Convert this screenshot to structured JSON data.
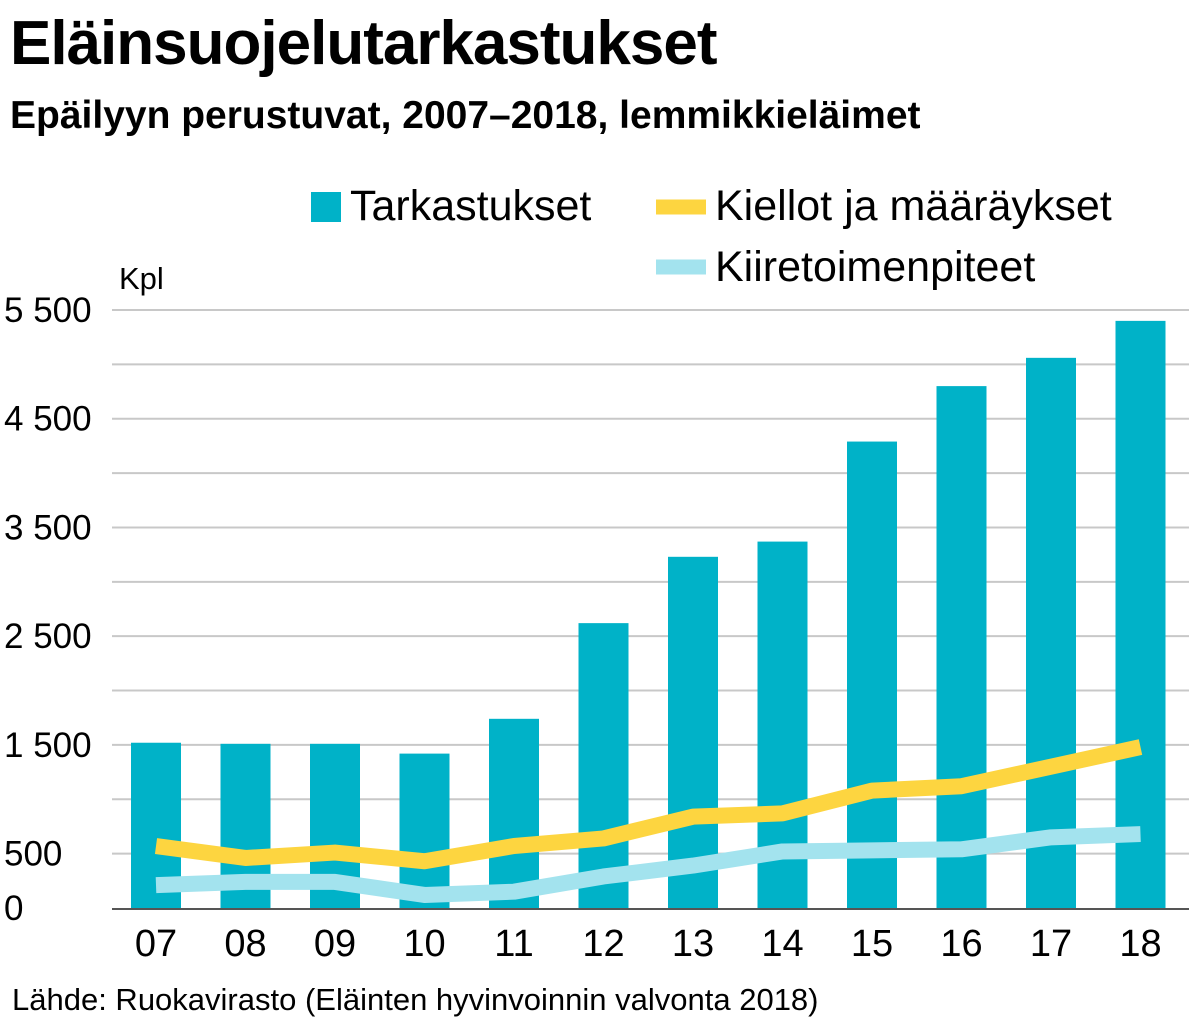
{
  "title": "Eläinsuojelutarkastukset",
  "subtitle": "Epäilyyn perustuvat, 2007–2018, lemmikkieläimet",
  "source": "Lähde: Ruokavirasto (Eläinten hyvinvoinnin valvonta 2018)",
  "colors": {
    "bars": "#00b2c8",
    "line_kiellot": "#fdd540",
    "line_kiire": "#a3e3ee",
    "grid": "#c8c8c8",
    "axis": "#555555"
  },
  "chart_data": {
    "type": "bar",
    "title": "Eläinsuojelutarkastukset",
    "subtitle": "Epäilyyn perustuvat, 2007–2018, lemmikkieläimet",
    "ylabel": "Kpl",
    "xlabel": "",
    "categories": [
      "07",
      "08",
      "09",
      "10",
      "11",
      "12",
      "13",
      "14",
      "15",
      "16",
      "17",
      "18"
    ],
    "ylim": [
      0,
      5500
    ],
    "ytick_labels": [
      {
        "value": 0,
        "label": "0"
      },
      {
        "value": 500,
        "label": "500"
      },
      {
        "value": 1500,
        "label": "1 500"
      },
      {
        "value": 2500,
        "label": "2 500"
      },
      {
        "value": 3500,
        "label": "3 500"
      },
      {
        "value": 4500,
        "label": "4 500"
      },
      {
        "value": 5500,
        "label": "5 500"
      }
    ],
    "grid_values": [
      500,
      1000,
      1500,
      2000,
      2500,
      3000,
      3500,
      4000,
      4500,
      5000,
      5500
    ],
    "legend_position": "top-right",
    "series": [
      {
        "name": "Tarkastukset",
        "kind": "bar",
        "values": [
          1520,
          1510,
          1510,
          1420,
          1740,
          2620,
          3230,
          3370,
          4290,
          4800,
          5060,
          5400
        ]
      },
      {
        "name": "Kiellot ja määräykset",
        "kind": "line",
        "values": [
          570,
          460,
          510,
          430,
          570,
          640,
          840,
          870,
          1080,
          1120,
          1300,
          1480
        ]
      },
      {
        "name": "Kiiretoimenpiteet",
        "kind": "line",
        "values": [
          210,
          240,
          240,
          120,
          150,
          290,
          390,
          520,
          530,
          540,
          650,
          680
        ]
      }
    ]
  }
}
